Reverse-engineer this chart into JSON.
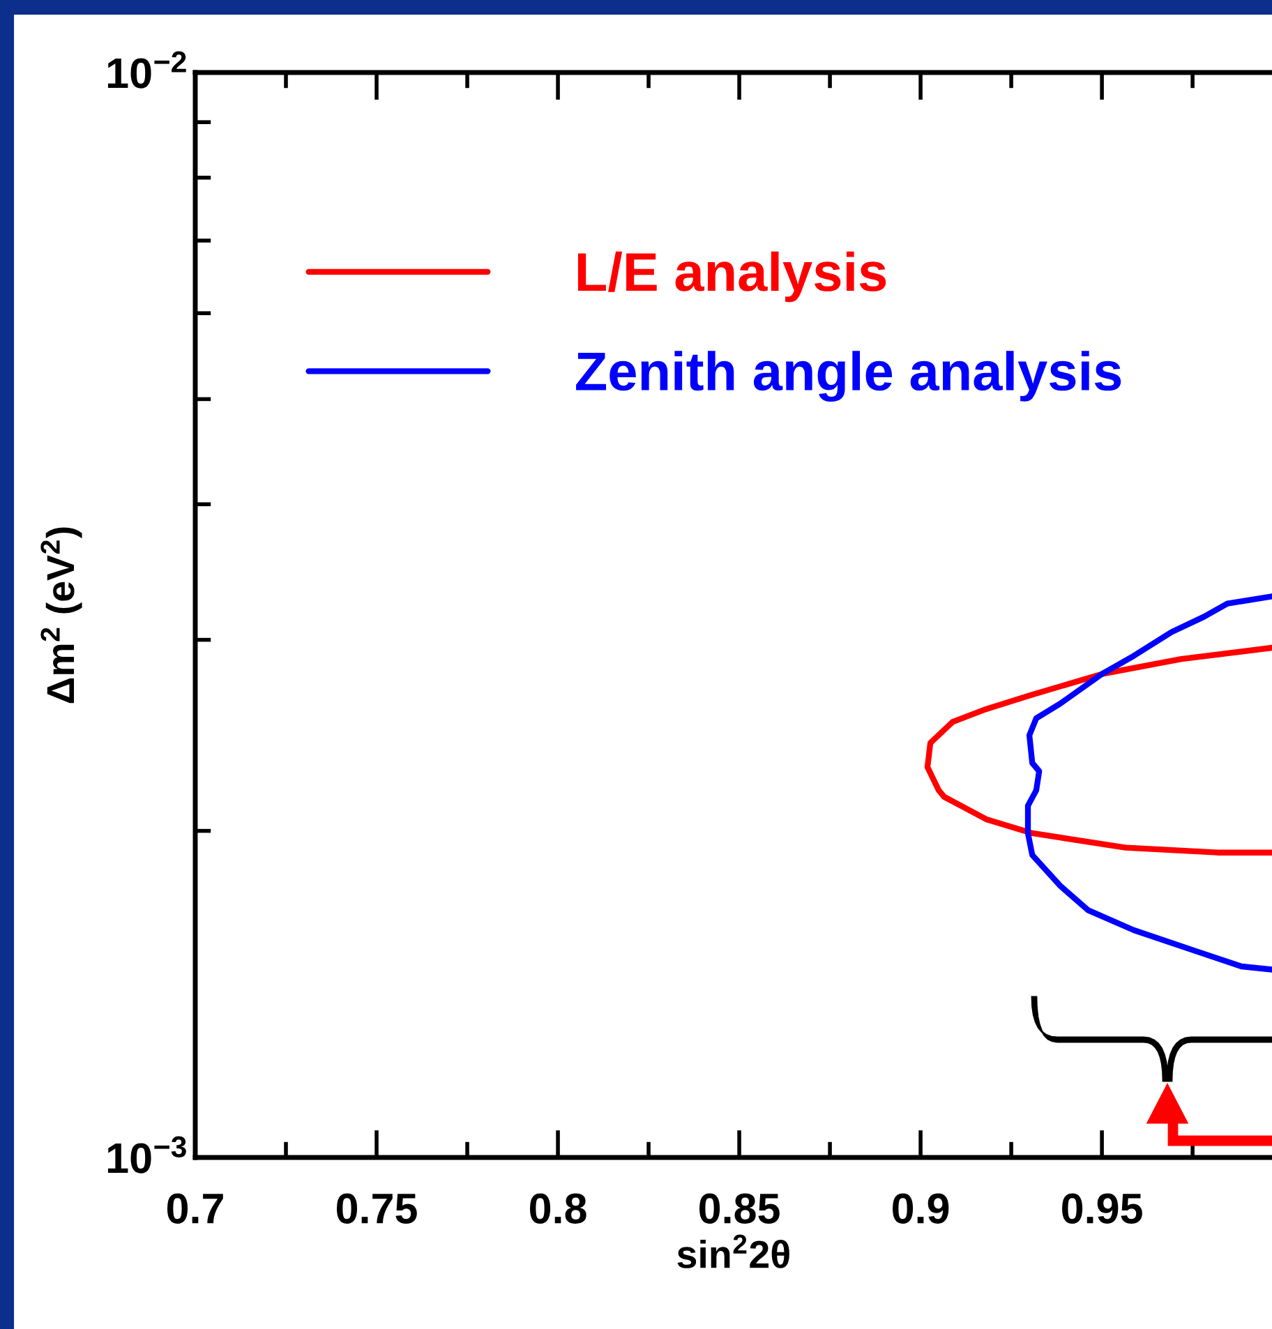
{
  "chart_data": {
    "type": "line",
    "xlabel": "sin$^{2}$2θ",
    "ylabel": "Δm$^{2}$ (eV$^{2}$)",
    "log": "y",
    "grid": false,
    "legend": "top left",
    "line_style": "solid",
    "xlim": [
      0.7,
      0.9969
    ],
    "ylim": [
      0.001,
      0.01
    ],
    "xticks": [
      0.7,
      {
        "value": 0.725,
        "label": null
      },
      0.75,
      {
        "value": 0.775,
        "label": null
      },
      0.8,
      {
        "value": 0.825,
        "label": null
      },
      0.85,
      {
        "value": 0.875,
        "label": null
      },
      0.9,
      {
        "value": 0.925,
        "label": null
      },
      0.95,
      {
        "value": 0.975,
        "label": null
      }
    ],
    "yticks": [
      {
        "value": 0.001,
        "label": "10$^{−3}$"
      },
      {
        "value": 0.002,
        "label": null
      },
      {
        "value": 0.003,
        "label": null
      },
      {
        "value": 0.004,
        "label": null
      },
      {
        "value": 0.005,
        "label": null
      },
      {
        "value": 0.006,
        "label": null
      },
      {
        "value": 0.007,
        "label": null
      },
      {
        "value": 0.008,
        "label": null
      },
      {
        "value": 0.009,
        "label": null
      },
      {
        "value": 0.01,
        "label": "10$^{−2}$"
      }
    ],
    "series": [
      {
        "name": "L/E analysis",
        "color": "#ff0000",
        "x": [
          0.9969,
          0.9719,
          0.95,
          0.9308,
          0.9181,
          0.9088,
          0.9027,
          0.9019,
          0.905,
          0.9065,
          0.9181,
          0.9308,
          0.9565,
          0.9819,
          0.9969
        ],
        "values": [
          0.00295,
          0.00288,
          0.00279,
          0.00267,
          0.00259,
          0.00252,
          0.00241,
          0.00229,
          0.00218,
          0.00215,
          0.00205,
          0.00199,
          0.00193,
          0.00191,
          0.00191
        ]
      },
      {
        "name": "Zenith angle analysis",
        "color": "#0000ff",
        "x": [
          0.9969,
          0.9846,
          0.9781,
          0.9692,
          0.9588,
          0.95,
          0.9385,
          0.9319,
          0.93,
          0.9308,
          0.9327,
          0.9319,
          0.9296,
          0.9296,
          0.9308,
          0.9385,
          0.9462,
          0.9588,
          0.9758,
          0.9885,
          0.9969
        ],
        "values": [
          0.00329,
          0.00324,
          0.00315,
          0.00305,
          0.0029,
          0.00279,
          0.00262,
          0.00254,
          0.00245,
          0.00231,
          0.00227,
          0.00218,
          0.00211,
          0.00199,
          0.0019,
          0.00178,
          0.00169,
          0.00162,
          0.00155,
          0.0015,
          0.00149
        ]
      }
    ]
  }
}
